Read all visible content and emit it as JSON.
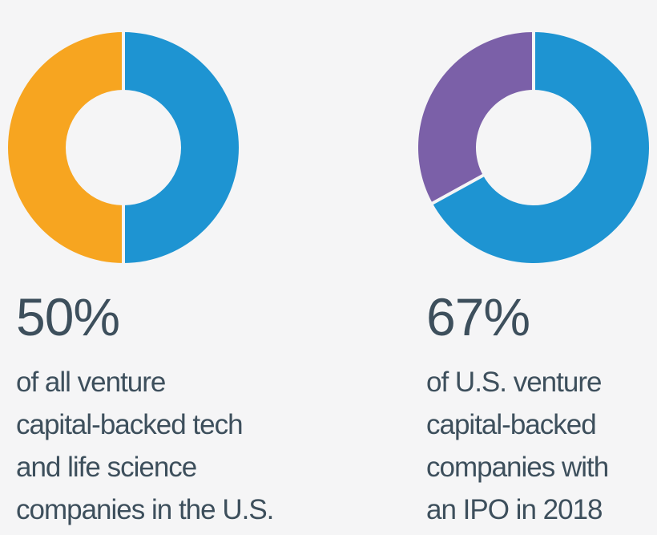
{
  "chart_data": [
    {
      "type": "pie",
      "variant": "donut",
      "slices": [
        {
          "value": 50,
          "color": "#1e94d2"
        },
        {
          "value": 50,
          "color": "#f7a520"
        }
      ],
      "percent_label": "50%",
      "caption_lines": [
        "of all venture",
        "capital-backed tech",
        "and life science",
        "companies in the U.S."
      ]
    },
    {
      "type": "pie",
      "variant": "donut",
      "slices": [
        {
          "value": 67,
          "color": "#1e94d2"
        },
        {
          "value": 33,
          "color": "#7b60a8"
        }
      ],
      "percent_label": "67%",
      "caption_lines": [
        "of U.S. venture",
        "capital-backed",
        "companies with",
        "an IPO in 2018"
      ]
    }
  ],
  "colors": {
    "text": "#3d4f5c",
    "background": "#f5f5f6"
  }
}
